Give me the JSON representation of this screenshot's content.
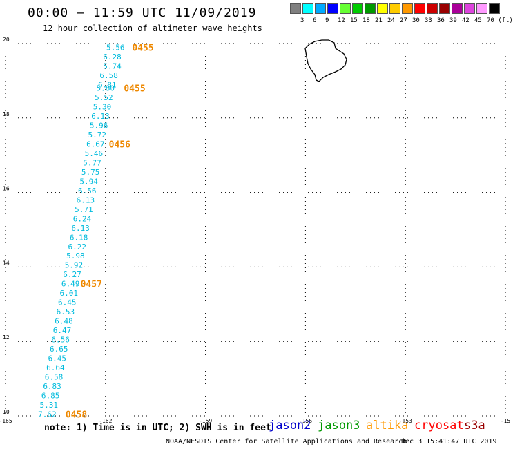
{
  "title": "00:00 – 11:59 UTC 11/09/2019",
  "subtitle": "12 hour collection of altimeter wave heights",
  "legend": {
    "colors": [
      "#808080",
      "#00ffff",
      "#00aaff",
      "#0000ff",
      "#66ff33",
      "#00cc00",
      "#009900",
      "#ffff00",
      "#ffcc00",
      "#ff9900",
      "#ff0000",
      "#cc0000",
      "#990000",
      "#aa0099",
      "#dd44dd",
      "#ff99ff",
      "#000000"
    ],
    "labels": [
      "3",
      "6",
      "9",
      "12",
      "15",
      "18",
      "21",
      "24",
      "27",
      "30",
      "33",
      "36",
      "39",
      "42",
      "45",
      "70 (ft)"
    ]
  },
  "map": {
    "lon_range": [
      -165,
      -150
    ],
    "lat_range": [
      10,
      20
    ],
    "x_ticks": [
      "-165",
      "-162",
      "-159",
      "-156",
      "-153",
      "-15"
    ],
    "y_ticks": [
      "10",
      "12",
      "14",
      "16",
      "18",
      "20"
    ],
    "grid": true
  },
  "swh": [
    {
      "lon": -161.7,
      "lat": 19.9,
      "value": "5.56"
    },
    {
      "lon": -161.8,
      "lat": 19.65,
      "value": "6.28"
    },
    {
      "lon": -161.8,
      "lat": 19.4,
      "value": "5.74"
    },
    {
      "lon": -161.9,
      "lat": 19.15,
      "value": "6.58"
    },
    {
      "lon": -161.95,
      "lat": 18.9,
      "value": "6.81"
    },
    {
      "lon": -162.0,
      "lat": 18.8,
      "value": "5.80"
    },
    {
      "lon": -162.05,
      "lat": 18.55,
      "value": "5.52"
    },
    {
      "lon": -162.1,
      "lat": 18.3,
      "value": "5.30"
    },
    {
      "lon": -162.15,
      "lat": 18.05,
      "value": "6.13"
    },
    {
      "lon": -162.2,
      "lat": 17.8,
      "value": "5.96"
    },
    {
      "lon": -162.25,
      "lat": 17.55,
      "value": "5.72"
    },
    {
      "lon": -162.3,
      "lat": 17.3,
      "value": "6.67"
    },
    {
      "lon": -162.35,
      "lat": 17.05,
      "value": "5.46"
    },
    {
      "lon": -162.4,
      "lat": 16.8,
      "value": "5.77"
    },
    {
      "lon": -162.45,
      "lat": 16.55,
      "value": "5.75"
    },
    {
      "lon": -162.5,
      "lat": 16.3,
      "value": "5.94"
    },
    {
      "lon": -162.55,
      "lat": 16.05,
      "value": "6.56"
    },
    {
      "lon": -162.6,
      "lat": 15.8,
      "value": "6.13"
    },
    {
      "lon": -162.65,
      "lat": 15.55,
      "value": "5.71"
    },
    {
      "lon": -162.7,
      "lat": 15.3,
      "value": "6.24"
    },
    {
      "lon": -162.75,
      "lat": 15.05,
      "value": "6.13"
    },
    {
      "lon": -162.8,
      "lat": 14.8,
      "value": "6.18"
    },
    {
      "lon": -162.85,
      "lat": 14.55,
      "value": "6.22"
    },
    {
      "lon": -162.9,
      "lat": 14.3,
      "value": "5.98"
    },
    {
      "lon": -162.95,
      "lat": 14.05,
      "value": "5.92"
    },
    {
      "lon": -163.0,
      "lat": 13.8,
      "value": "6.27"
    },
    {
      "lon": -163.05,
      "lat": 13.55,
      "value": "6.49"
    },
    {
      "lon": -163.1,
      "lat": 13.3,
      "value": "6.01"
    },
    {
      "lon": -163.15,
      "lat": 13.05,
      "value": "6.45"
    },
    {
      "lon": -163.2,
      "lat": 12.8,
      "value": "6.53"
    },
    {
      "lon": -163.25,
      "lat": 12.55,
      "value": "6.48"
    },
    {
      "lon": -163.3,
      "lat": 12.3,
      "value": "6.47"
    },
    {
      "lon": -163.35,
      "lat": 12.05,
      "value": "6.56"
    },
    {
      "lon": -163.4,
      "lat": 11.8,
      "value": "6.65"
    },
    {
      "lon": -163.45,
      "lat": 11.55,
      "value": "6.45"
    },
    {
      "lon": -163.5,
      "lat": 11.3,
      "value": "6.64"
    },
    {
      "lon": -163.55,
      "lat": 11.05,
      "value": "6.58"
    },
    {
      "lon": -163.6,
      "lat": 10.8,
      "value": "6.83"
    },
    {
      "lon": -163.65,
      "lat": 10.55,
      "value": "6.85"
    },
    {
      "lon": -163.7,
      "lat": 10.3,
      "value": "5.31"
    },
    {
      "lon": -163.75,
      "lat": 10.05,
      "value": "7.62"
    }
  ],
  "times": [
    {
      "lon": -161.2,
      "lat": 19.9,
      "value": "0455"
    },
    {
      "lon": -161.45,
      "lat": 18.8,
      "value": "0455"
    },
    {
      "lon": -161.9,
      "lat": 17.3,
      "value": "0456"
    },
    {
      "lon": -162.75,
      "lat": 13.55,
      "value": "0457"
    },
    {
      "lon": -163.2,
      "lat": 10.05,
      "value": "0458"
    }
  ],
  "note": "note: 1) Time is in UTC; 2) SWH is in feet",
  "satellites": [
    {
      "name": "jason2",
      "color": "#0000cc"
    },
    {
      "name": "jason3",
      "color": "#009900"
    },
    {
      "name": "altika",
      "color": "#ff9900"
    },
    {
      "name": "cryosat",
      "color": "#ff0000"
    },
    {
      "name": "s3a",
      "color": "#990000"
    }
  ],
  "credit": "NOAA/NESDIS Center for Satellite Applications and Research",
  "credit_date": "Dec  3 15:41:47 UTC 2019",
  "colors": {
    "swh": "#00bbdd",
    "time": "#ee8800",
    "grid": "#000000"
  }
}
